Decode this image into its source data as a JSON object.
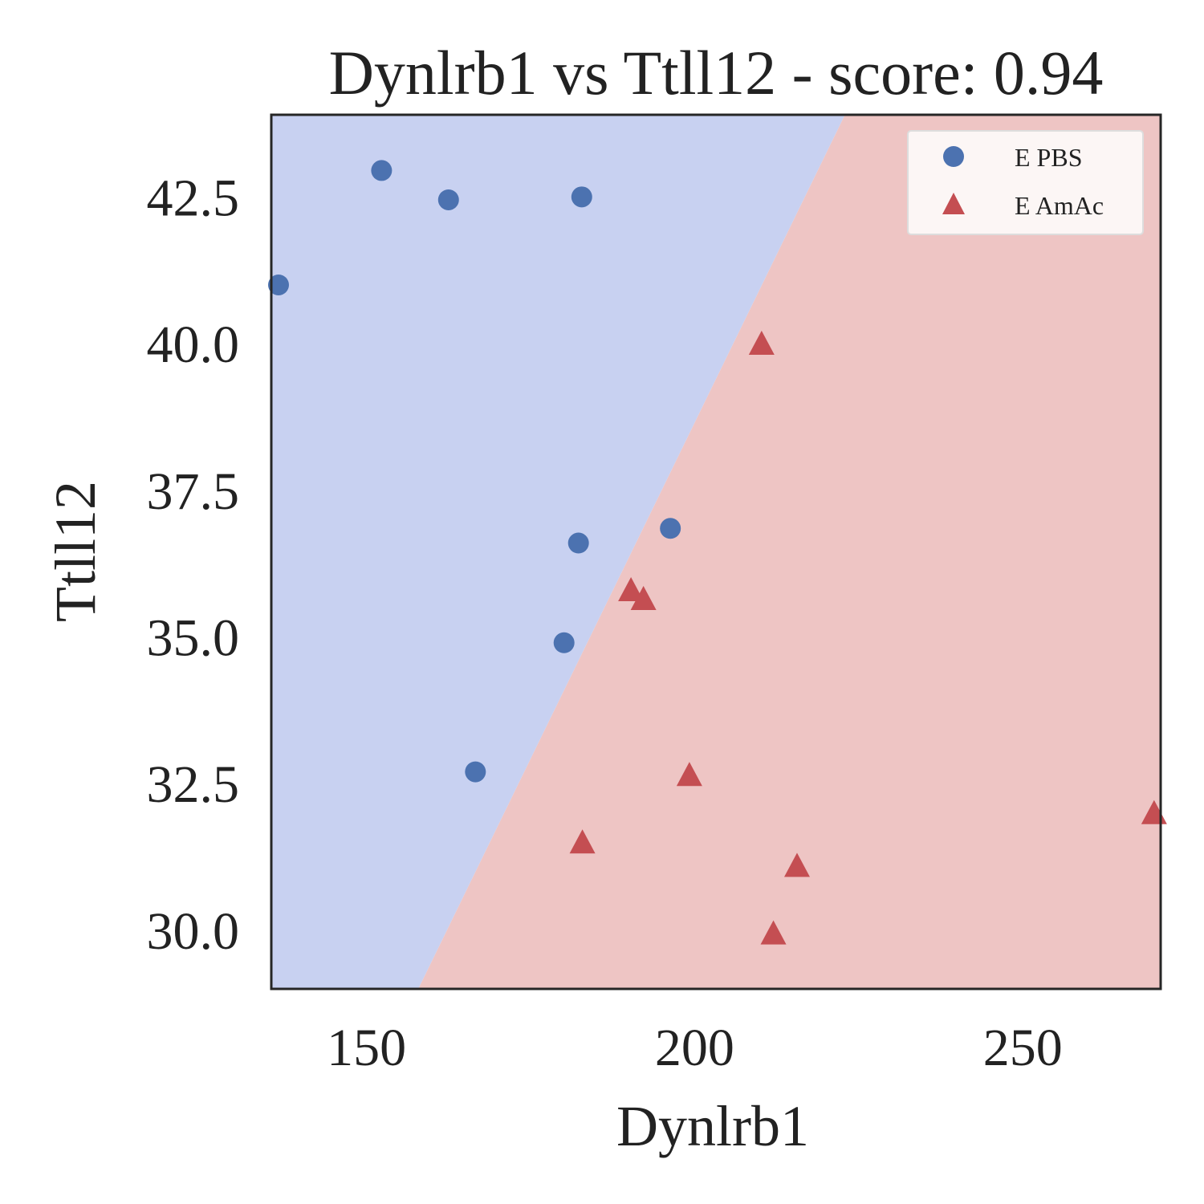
{
  "chart_data": {
    "type": "scatter",
    "title": "Dynlrb1 vs Ttll12 - score: 0.94",
    "xlabel": "Dynlrb1",
    "ylabel": "Ttll12",
    "xlim": [
      135.5,
      271
    ],
    "ylim": [
      29.0,
      43.9
    ],
    "xticks": [
      150,
      200,
      250
    ],
    "xtick_labels": [
      "150",
      "200",
      "250"
    ],
    "yticks": [
      30.0,
      32.5,
      35.0,
      37.5,
      40.0,
      42.5
    ],
    "ytick_labels": [
      "30.0",
      "32.5",
      "35.0",
      "37.5",
      "40.0",
      "42.5"
    ],
    "grid": false,
    "legend_position": "top-right",
    "decision_boundary": {
      "points": [
        [
          157.9,
          29.0
        ],
        [
          222.9,
          43.9
        ]
      ],
      "left_region_color": "#c8d1f1",
      "right_region_color": "#eec5c4"
    },
    "series": [
      {
        "name": "E PBS",
        "marker": "circle",
        "color": "#4c72b0",
        "x": [
          136.6,
          152.3,
          162.5,
          166.6,
          180.1,
          182.3,
          182.8,
          196.3
        ],
        "y": [
          41.0,
          42.95,
          42.45,
          32.7,
          34.9,
          36.6,
          42.5,
          36.85
        ]
      },
      {
        "name": "E AmAc",
        "marker": "triangle",
        "color": "#c44e52",
        "x": [
          182.9,
          190.3,
          192.2,
          199.2,
          210.2,
          212.0,
          215.6,
          270.0
        ],
        "y": [
          31.5,
          35.8,
          35.65,
          32.65,
          40.0,
          29.95,
          31.1,
          32.0
        ]
      }
    ]
  }
}
